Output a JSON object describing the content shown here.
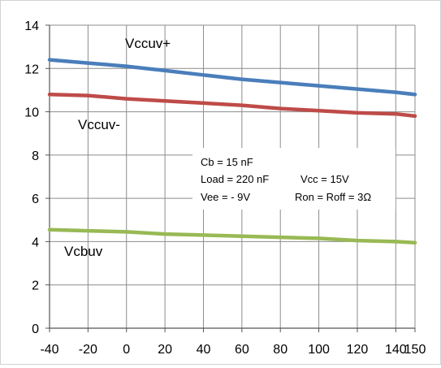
{
  "chart_data": {
    "type": "line",
    "x": [
      -40,
      -20,
      0,
      20,
      40,
      60,
      80,
      100,
      120,
      140,
      150
    ],
    "xticks": [
      -40,
      -20,
      0,
      20,
      40,
      60,
      80,
      100,
      120,
      140,
      150
    ],
    "yticks": [
      0,
      2,
      4,
      6,
      8,
      10,
      12,
      14
    ],
    "xlim": [
      -40,
      150
    ],
    "ylim": [
      0,
      14
    ],
    "grid": true,
    "series": [
      {
        "name": "Vccuv+",
        "color": "#4a7ebb",
        "values": [
          12.4,
          12.25,
          12.1,
          11.9,
          11.7,
          11.5,
          11.35,
          11.2,
          11.05,
          10.9,
          10.8
        ]
      },
      {
        "name": "Vccuv-",
        "color": "#be4b48",
        "values": [
          10.8,
          10.75,
          10.6,
          10.5,
          10.4,
          10.3,
          10.15,
          10.05,
          9.95,
          9.9,
          9.8
        ]
      },
      {
        "name": "Vcbuv",
        "color": "#98b954",
        "values": [
          4.55,
          4.5,
          4.45,
          4.35,
          4.3,
          4.25,
          4.2,
          4.15,
          4.05,
          4.0,
          3.95
        ]
      }
    ],
    "annotations": [
      "Cb =  15 nF",
      "Load = 220 nF",
      "Vcc = 15V",
      "Vee = - 9V",
      "Ron = Roff = 3Ω"
    ]
  }
}
